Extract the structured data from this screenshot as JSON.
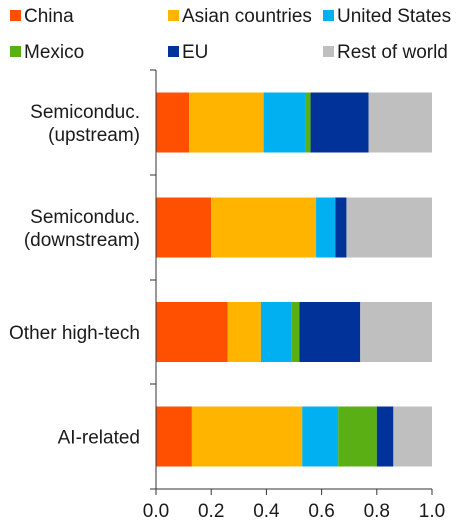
{
  "chart_data": {
    "type": "bar",
    "orientation": "horizontal",
    "stacked": true,
    "categories": [
      [
        "Semiconduc.",
        "(upstream)"
      ],
      [
        "Semiconduc.",
        "(downstream)"
      ],
      [
        "Other high-tech"
      ],
      [
        "AI-related"
      ]
    ],
    "series": [
      {
        "name": "China",
        "color": "#ff4f00",
        "values": [
          0.12,
          0.2,
          0.26,
          0.13
        ]
      },
      {
        "name": "Asian countries",
        "color": "#ffb400",
        "values": [
          0.27,
          0.38,
          0.12,
          0.4
        ]
      },
      {
        "name": "United States",
        "color": "#00b0f0",
        "values": [
          0.15,
          0.07,
          0.11,
          0.13
        ]
      },
      {
        "name": "Mexico",
        "color": "#5aaf14",
        "values": [
          0.02,
          0.0,
          0.03,
          0.14
        ]
      },
      {
        "name": "EU",
        "color": "#003299",
        "values": [
          0.21,
          0.04,
          0.22,
          0.06
        ]
      },
      {
        "name": "Rest of world",
        "color": "#bfbfbf",
        "values": [
          0.23,
          0.31,
          0.26,
          0.14
        ]
      }
    ],
    "xlim": [
      0,
      1
    ],
    "xticks": [
      "0.0",
      "0.2",
      "0.4",
      "0.6",
      "0.8",
      "1.0"
    ],
    "legend_position": "top",
    "grid": false
  }
}
